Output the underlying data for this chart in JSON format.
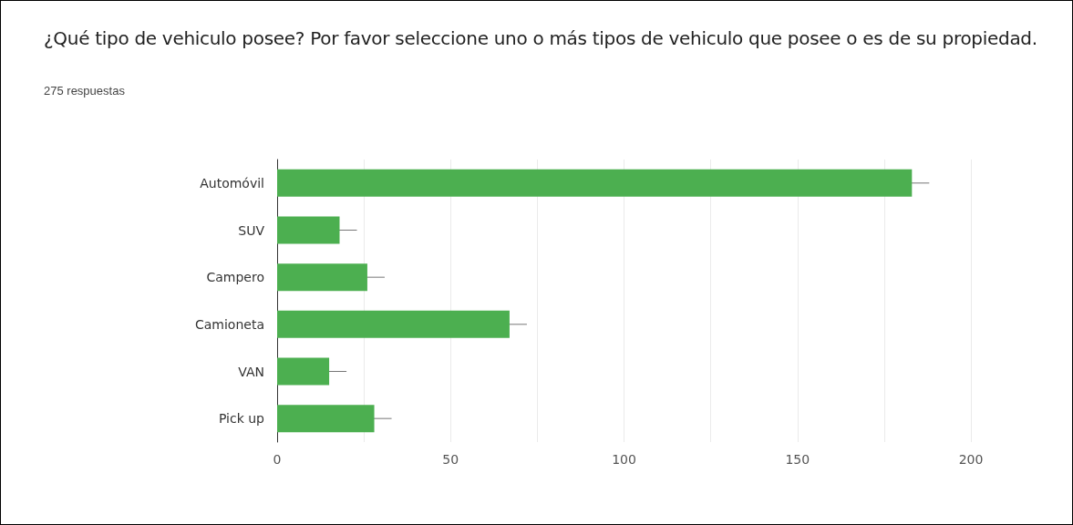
{
  "chart_data": {
    "type": "bar",
    "orientation": "horizontal",
    "title": "¿Qué tipo de vehiculo posee? Por favor seleccione uno o más tipos de vehiculo que posee o es de su propiedad.",
    "subtitle": "275 respuestas",
    "categories": [
      "Automóvil",
      "SUV",
      "Campero",
      "Camioneta",
      "VAN",
      "Pick up"
    ],
    "values": [
      183,
      18,
      26,
      67,
      15,
      28
    ],
    "errors": [
      5,
      5,
      5,
      5,
      5,
      5
    ],
    "color": "#4caf50",
    "xlim": [
      0,
      200
    ],
    "xticks": [
      0,
      {
        "value": 25,
        "label": null
      },
      50,
      {
        "value": 75,
        "label": null
      },
      100,
      {
        "value": 125,
        "label": null
      },
      150,
      {
        "value": 175,
        "label": null
      },
      200
    ],
    "grid": "x"
  }
}
